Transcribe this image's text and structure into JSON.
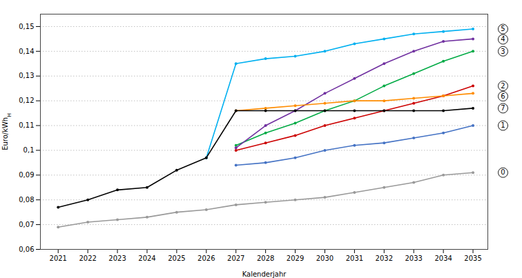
{
  "chart_data": {
    "type": "line",
    "xlabel": "Kalenderjahr",
    "ylabel": "Euro/kWhH",
    "x": [
      2021,
      2022,
      2023,
      2024,
      2025,
      2026,
      2027,
      2028,
      2029,
      2030,
      2031,
      2032,
      2033,
      2034,
      2035
    ],
    "series": [
      {
        "name": "0",
        "color": "#999999",
        "values": [
          0.069,
          0.071,
          0.072,
          0.073,
          0.075,
          0.076,
          0.078,
          0.079,
          0.08,
          0.081,
          0.083,
          0.085,
          0.087,
          0.09,
          0.091
        ]
      },
      {
        "name": "1",
        "color": "#4472C4",
        "values": [
          null,
          null,
          null,
          null,
          null,
          null,
          0.094,
          0.095,
          0.097,
          0.1,
          0.102,
          0.103,
          0.105,
          0.107,
          0.11
        ]
      },
      {
        "name": "2",
        "color": "#CC0000",
        "values": [
          null,
          null,
          null,
          null,
          null,
          null,
          0.1,
          0.103,
          0.106,
          0.11,
          0.113,
          0.116,
          0.119,
          0.122,
          0.126
        ]
      },
      {
        "name": "3",
        "color": "#00AA44",
        "values": [
          null,
          null,
          null,
          null,
          null,
          null,
          0.102,
          0.107,
          0.111,
          0.116,
          0.12,
          0.126,
          0.131,
          0.136,
          0.14
        ]
      },
      {
        "name": "4",
        "color": "#7030A0",
        "values": [
          null,
          null,
          null,
          null,
          null,
          null,
          0.101,
          0.11,
          0.116,
          0.123,
          0.129,
          0.135,
          0.14,
          0.144,
          0.145
        ]
      },
      {
        "name": "5",
        "color": "#00B0F0",
        "values": [
          null,
          null,
          null,
          null,
          null,
          0.097,
          0.135,
          0.137,
          0.138,
          0.14,
          0.143,
          0.145,
          0.147,
          0.148,
          0.149
        ]
      },
      {
        "name": "6",
        "color": "#FF8C00",
        "values": [
          null,
          null,
          null,
          null,
          null,
          null,
          0.116,
          0.117,
          0.118,
          0.119,
          0.12,
          0.12,
          0.121,
          0.122,
          0.123
        ]
      },
      {
        "name": "7",
        "color": "#000000",
        "values": [
          0.077,
          0.08,
          0.084,
          0.085,
          0.092,
          0.097,
          0.116,
          0.116,
          0.116,
          0.116,
          0.116,
          0.116,
          0.116,
          0.116,
          0.117
        ]
      }
    ],
    "xlim": [
      2020.4,
      2035.5
    ],
    "xticks": [
      2021,
      2022,
      2023,
      2024,
      2025,
      2026,
      2027,
      2028,
      2029,
      2030,
      2031,
      2032,
      2033,
      2034,
      2035
    ],
    "ylim": [
      0.06,
      0.155
    ],
    "yticks": [
      {
        "value": 0.06,
        "label": "0,06"
      },
      {
        "value": 0.07,
        "label": "0,07"
      },
      {
        "value": 0.08,
        "label": "0,08"
      },
      {
        "value": 0.09,
        "label": "0,09"
      },
      {
        "value": 0.1,
        "label": "0,1"
      },
      {
        "value": 0.11,
        "label": "0,11"
      },
      {
        "value": 0.12,
        "label": "0,12"
      },
      {
        "value": 0.13,
        "label": "0,13"
      },
      {
        "value": 0.14,
        "label": "0,14"
      },
      {
        "value": 0.15,
        "label": "0,15"
      }
    ],
    "grid": true,
    "marker": "circle"
  }
}
